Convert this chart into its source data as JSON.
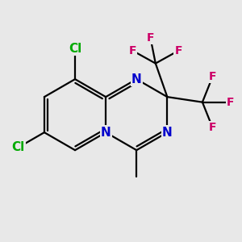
{
  "bg_color": "#e8e8e8",
  "bond_color": "#000000",
  "bond_width": 1.6,
  "atom_colors": {
    "N": "#0000cc",
    "Cl": "#00aa00",
    "F": "#cc0066"
  },
  "font_size_N": 11,
  "font_size_Cl": 11,
  "font_size_F": 10,
  "bl": 0.28
}
